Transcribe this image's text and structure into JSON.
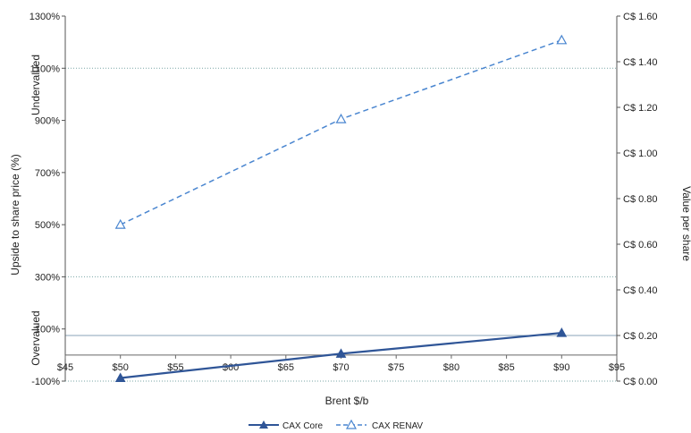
{
  "chart_data": {
    "type": "line",
    "x": [
      50,
      70,
      90
    ],
    "xlim": [
      45,
      95
    ],
    "x_tick_labels": [
      "$45",
      "$50",
      "$55",
      "$60",
      "$65",
      "$70",
      "$75",
      "$80",
      "$85",
      "$90",
      "$95"
    ],
    "xlabel": "Brent $/b",
    "ylabel_left": "Upside to share price (%)",
    "ylim_left": [
      -100,
      1300
    ],
    "y_left_tick_labels": [
      "-100%",
      "100%",
      "300%",
      "500%",
      "700%",
      "900%",
      "1100%",
      "1300%"
    ],
    "ylabel_right": "Value per share",
    "ylim_right": [
      0.0,
      1.6
    ],
    "y_right_tick_labels": [
      "C$ 0.00",
      "C$ 0.20",
      "C$ 0.40",
      "C$ 0.60",
      "C$ 0.80",
      "C$ 1.00",
      "C$ 1.20",
      "C$ 1.40",
      "C$ 1.60"
    ],
    "region_labels": {
      "upper": "Undervalued",
      "lower": "Overvalued"
    },
    "series": [
      {
        "name": "CAX Core",
        "values": [
          -88,
          5,
          85
        ],
        "color": "#2f5597",
        "style": "solid",
        "marker": "filled-triangle"
      },
      {
        "name": "CAX RENAV",
        "values": [
          500,
          905,
          1208
        ],
        "color": "#4a86d0",
        "style": "dashed",
        "marker": "open-triangle"
      }
    ],
    "gridlines_y_left": [
      -100,
      300,
      1100
    ],
    "legend_position": "bottom-center"
  }
}
